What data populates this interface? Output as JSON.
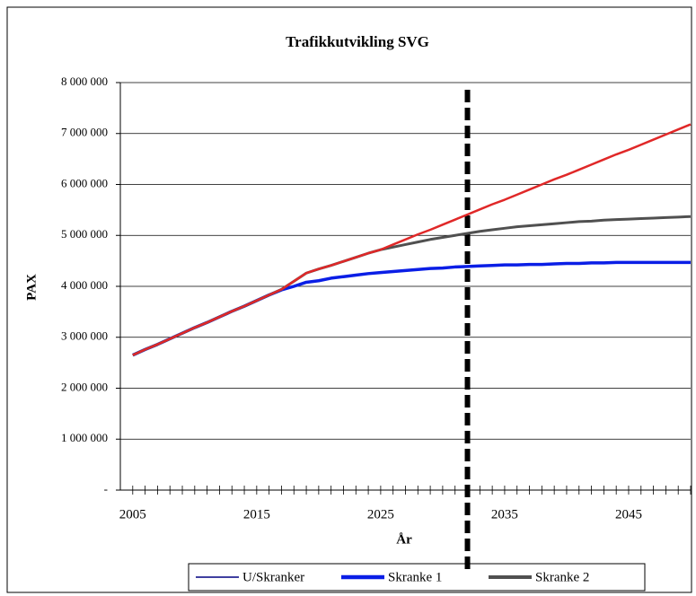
{
  "chart_data": {
    "type": "line",
    "title": "Trafikkutvikling SVG",
    "x_label": "År",
    "y_label": "PAX",
    "x": [
      2005,
      2006,
      2007,
      2008,
      2009,
      2010,
      2011,
      2012,
      2013,
      2014,
      2015,
      2016,
      2017,
      2018,
      2019,
      2020,
      2021,
      2022,
      2023,
      2024,
      2025,
      2026,
      2027,
      2028,
      2029,
      2030,
      2031,
      2032,
      2033,
      2034,
      2035,
      2036,
      2037,
      2038,
      2039,
      2040,
      2041,
      2042,
      2043,
      2044,
      2045,
      2046,
      2047,
      2048,
      2049,
      2050
    ],
    "xlim": [
      2004,
      2050
    ],
    "xticks": [
      2005,
      2015,
      2025,
      2035,
      2045
    ],
    "ylim": [
      0,
      8000000
    ],
    "yticks": [
      {
        "value": 0,
        "label": "-"
      },
      {
        "value": 1000000,
        "label": "1 000 000"
      },
      {
        "value": 2000000,
        "label": "2 000 000"
      },
      {
        "value": 3000000,
        "label": "3 000 000"
      },
      {
        "value": 4000000,
        "label": "4 000 000"
      },
      {
        "value": 5000000,
        "label": "5 000 000"
      },
      {
        "value": 6000000,
        "label": "6 000 000"
      },
      {
        "value": 7000000,
        "label": "7 000 000"
      },
      {
        "value": 8000000,
        "label": "8 000 000"
      }
    ],
    "grid": true,
    "vline_x": 2032,
    "series": [
      {
        "name": "U/Skranker",
        "color": "#e02828",
        "legend_color": "#000080",
        "width": 2.5,
        "values": [
          2650000,
          2760000,
          2860000,
          2970000,
          3080000,
          3190000,
          3290000,
          3400000,
          3510000,
          3610000,
          3720000,
          3830000,
          3940000,
          4100000,
          4260000,
          4340000,
          4410000,
          4490000,
          4570000,
          4650000,
          4720000,
          4820000,
          4920000,
          5020000,
          5110000,
          5210000,
          5310000,
          5410000,
          5510000,
          5610000,
          5700000,
          5800000,
          5900000,
          6000000,
          6100000,
          6190000,
          6290000,
          6390000,
          6490000,
          6590000,
          6680000,
          6780000,
          6880000,
          6980000,
          7080000,
          7180000
        ]
      },
      {
        "name": "Skranke 1",
        "color": "#0a1ee6",
        "width": 3.5,
        "values": [
          2650000,
          2760000,
          2860000,
          2970000,
          3080000,
          3190000,
          3290000,
          3400000,
          3510000,
          3610000,
          3720000,
          3830000,
          3930000,
          4000000,
          4080000,
          4110000,
          4160000,
          4190000,
          4220000,
          4250000,
          4270000,
          4290000,
          4310000,
          4330000,
          4350000,
          4360000,
          4380000,
          4390000,
          4400000,
          4410000,
          4420000,
          4420000,
          4430000,
          4430000,
          4440000,
          4450000,
          4450000,
          4460000,
          4460000,
          4470000,
          4470000,
          4470000,
          4470000,
          4470000,
          4470000,
          4470000
        ]
      },
      {
        "name": "Skranke 2",
        "color": "#505050",
        "width": 3,
        "values": [
          2650000,
          2760000,
          2860000,
          2970000,
          3080000,
          3190000,
          3290000,
          3400000,
          3510000,
          3610000,
          3720000,
          3830000,
          3940000,
          4100000,
          4260000,
          4340000,
          4410000,
          4490000,
          4570000,
          4650000,
          4720000,
          4770000,
          4820000,
          4870000,
          4920000,
          4960000,
          5000000,
          5040000,
          5080000,
          5110000,
          5140000,
          5170000,
          5190000,
          5210000,
          5230000,
          5250000,
          5270000,
          5280000,
          5300000,
          5310000,
          5320000,
          5330000,
          5340000,
          5350000,
          5360000,
          5370000
        ]
      }
    ]
  }
}
